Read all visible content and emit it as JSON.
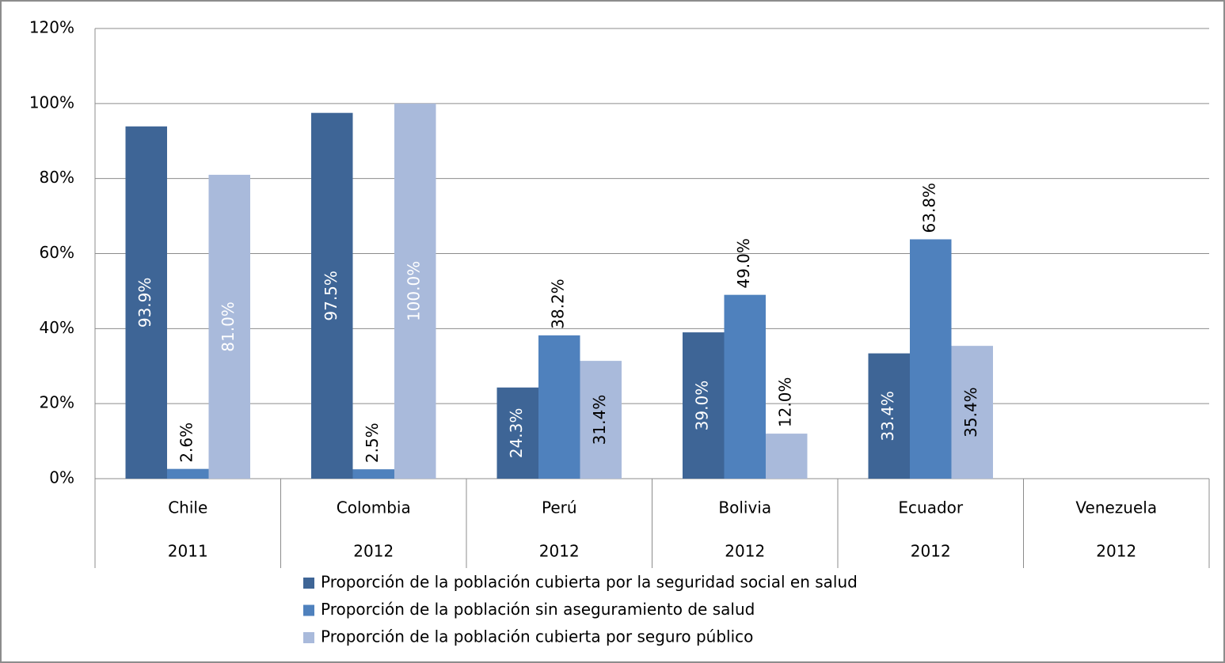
{
  "chart_data": {
    "type": "bar",
    "categories": [
      "Chile",
      "Colombia",
      "Perú",
      "Bolivia",
      "Ecuador",
      "Venezuela"
    ],
    "years": [
      "2011",
      "2012",
      "2012",
      "2012",
      "2012",
      "2012"
    ],
    "series": [
      {
        "name": "Proporción de la población cubierta por la seguridad social en salud",
        "color": "#3e6596",
        "values": [
          93.9,
          97.5,
          24.3,
          39.0,
          33.4,
          null
        ],
        "value_labels": [
          "93.9%",
          "97.5%",
          "24.3%",
          "39.0%",
          "33.4%",
          null
        ]
      },
      {
        "name": "Proporción de la población sin aseguramiento de salud",
        "color": "#4f81bd",
        "values": [
          2.6,
          2.5,
          38.2,
          49.0,
          63.8,
          null
        ],
        "value_labels": [
          "2.6%",
          "2.5%",
          "38.2%",
          "49.0%",
          "63.8%",
          null
        ]
      },
      {
        "name": "Proporción de la población cubierta por seguro público",
        "color": "#a9badb",
        "values": [
          81.0,
          100.0,
          31.4,
          12.0,
          35.4,
          null
        ],
        "value_labels": [
          "81.0%",
          "100.0%",
          "31.4%",
          "12.0%",
          "35.4%",
          null
        ]
      }
    ],
    "ylim": [
      0,
      120
    ],
    "yticks": [
      {
        "value": 0,
        "label": "0%"
      },
      {
        "value": 20,
        "label": "20%"
      },
      {
        "value": 40,
        "label": "40%"
      },
      {
        "value": 60,
        "label": "60%"
      },
      {
        "value": 80,
        "label": "80%"
      },
      {
        "value": 100,
        "label": "100%"
      },
      {
        "value": 120,
        "label": "120%"
      }
    ],
    "grid": true
  }
}
